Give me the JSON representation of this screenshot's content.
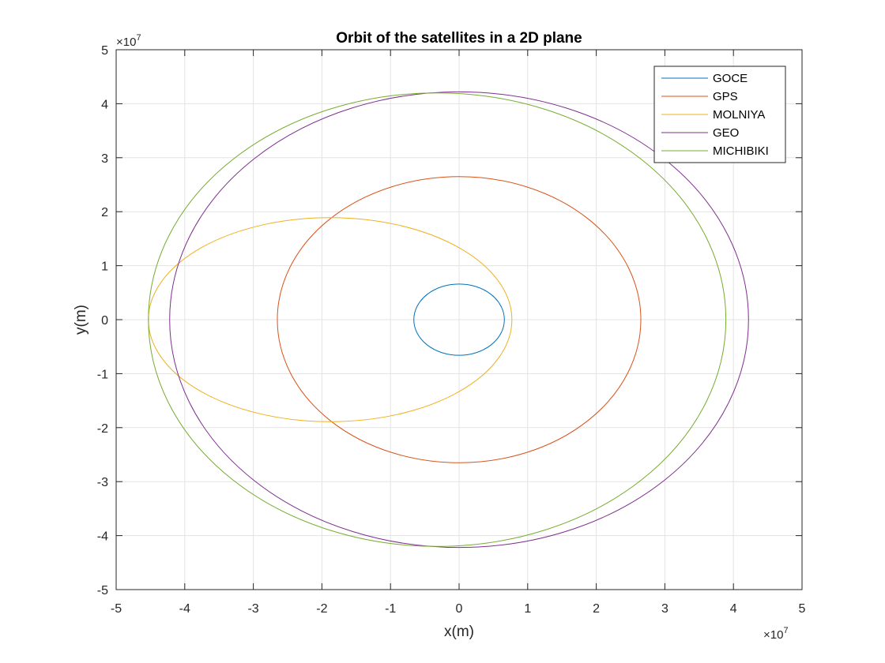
{
  "chart_data": {
    "type": "line",
    "title": "Orbit of the satellites in a 2D plane",
    "xlabel": "x(m)",
    "ylabel": "y(m)",
    "xlim": [
      -50000000,
      50000000
    ],
    "ylim": [
      -50000000,
      50000000
    ],
    "x_ticks": [
      -5,
      -4,
      -3,
      -2,
      -1,
      0,
      1,
      2,
      3,
      4,
      5
    ],
    "y_ticks": [
      -5,
      -4,
      -3,
      -2,
      -1,
      0,
      1,
      2,
      3,
      4,
      5
    ],
    "x_tick_labels": [
      "-5",
      "-4",
      "-3",
      "-2",
      "-1",
      "0",
      "1",
      "2",
      "3",
      "4",
      "5"
    ],
    "y_tick_labels": [
      "-5",
      "-4",
      "-3",
      "-2",
      "-1",
      "0",
      "1",
      "2",
      "3",
      "4",
      "5"
    ],
    "x_exponent_label": "×10",
    "x_exponent_power": "7",
    "y_exponent_label": "×10",
    "y_exponent_power": "7",
    "grid": true,
    "legend_position": "top-right",
    "series": [
      {
        "name": "GOCE",
        "color": "#0072BD",
        "center_x": 0,
        "center_y": 0,
        "semi_major": 6600000,
        "semi_minor": 6600000
      },
      {
        "name": "GPS",
        "color": "#D95319",
        "center_x": 0,
        "center_y": 0,
        "semi_major": 26500000,
        "semi_minor": 26500000
      },
      {
        "name": "MOLNIYA",
        "color": "#EDB120",
        "center_x": -18800000,
        "center_y": 0,
        "semi_major": 26500000,
        "semi_minor": 18900000
      },
      {
        "name": "GEO",
        "color": "#7E2F8E",
        "center_x": 0,
        "center_y": 0,
        "semi_major": 42200000,
        "semi_minor": 42200000
      },
      {
        "name": "MICHIBIKI",
        "color": "#77AC30",
        "center_x": -3200000,
        "center_y": 0,
        "semi_major": 42100000,
        "semi_minor": 42000000
      }
    ]
  }
}
